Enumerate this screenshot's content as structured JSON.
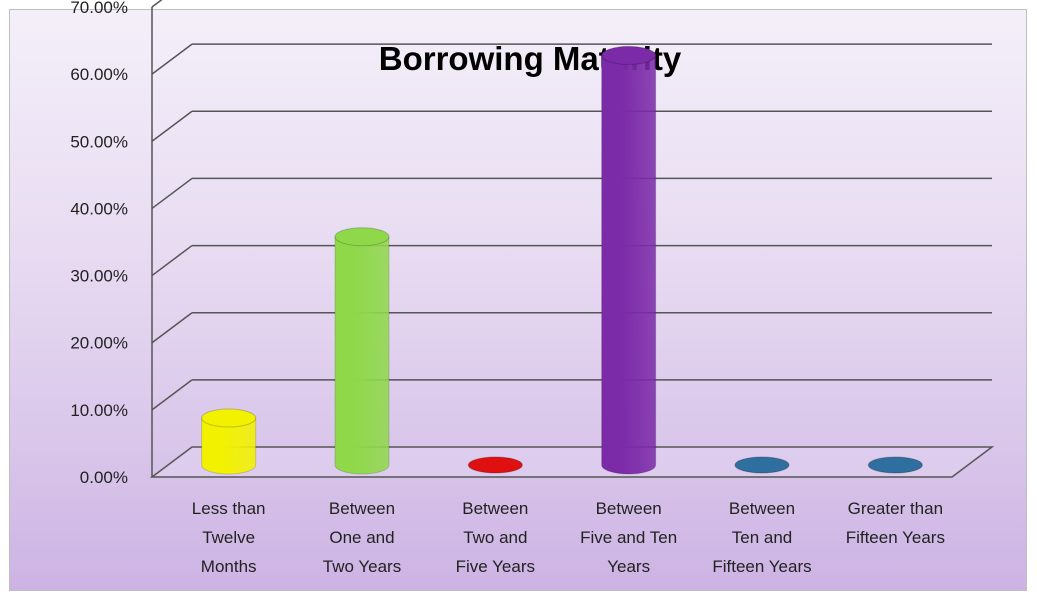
{
  "heading_fragment": "",
  "chart_data": {
    "type": "bar",
    "title": "Borrowing Maturity",
    "xlabel": "",
    "ylabel": "",
    "ylim": [
      0,
      0.7
    ],
    "yticks": [
      "0.00%",
      "10.00%",
      "20.00%",
      "30.00%",
      "40.00%",
      "50.00%",
      "60.00%",
      "70.00%"
    ],
    "categories": [
      [
        "Less than",
        "Twelve",
        "Months"
      ],
      [
        "Between",
        "One and",
        "Two Years"
      ],
      [
        "Between",
        "Two and",
        "Five Years"
      ],
      [
        "Between",
        "Five and Ten",
        "Years"
      ],
      [
        "Between",
        "Ten and",
        "Fifteen Years"
      ],
      [
        "Greater than",
        "Fifteen Years"
      ]
    ],
    "values": [
      0.07,
      0.34,
      0.01,
      0.61,
      0.0,
      0.0
    ],
    "colors": [
      "#f2f200",
      "#8fd84a",
      "#e01010",
      "#7b2aa8",
      "#2f6f9f",
      "#2f6f9f"
    ],
    "grid": true,
    "legend": "none"
  }
}
